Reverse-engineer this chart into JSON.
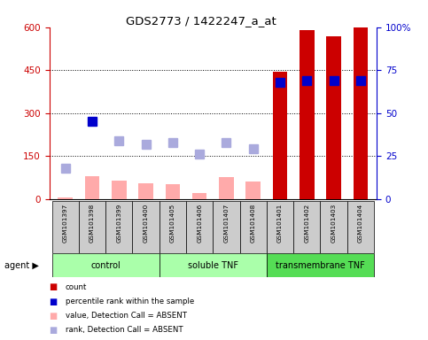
{
  "title": "GDS2773 / 1422247_a_at",
  "samples": [
    "GSM101397",
    "GSM101398",
    "GSM101399",
    "GSM101400",
    "GSM101405",
    "GSM101406",
    "GSM101407",
    "GSM101408",
    "GSM101401",
    "GSM101402",
    "GSM101403",
    "GSM101404"
  ],
  "count_present": [
    null,
    null,
    null,
    null,
    null,
    null,
    null,
    null,
    443,
    590,
    568,
    600
  ],
  "count_absent": [
    5,
    80,
    65,
    55,
    50,
    20,
    75,
    60,
    null,
    null,
    null,
    null
  ],
  "rank_present_pct": [
    null,
    45,
    null,
    null,
    null,
    null,
    null,
    null,
    68,
    69,
    69,
    69
  ],
  "rank_absent_pct": [
    18,
    null,
    34,
    32,
    33,
    26,
    33,
    29,
    null,
    null,
    null,
    null
  ],
  "ylim_left": [
    0,
    600
  ],
  "ylim_right": [
    0,
    100
  ],
  "yticks_left": [
    0,
    150,
    300,
    450,
    600
  ],
  "yticks_right": [
    0,
    25,
    50,
    75,
    100
  ],
  "group_info": [
    [
      0,
      3,
      "control",
      "#aaffaa"
    ],
    [
      4,
      7,
      "soluble TNF",
      "#aaffaa"
    ],
    [
      8,
      11,
      "transmembrane TNF",
      "#55dd55"
    ]
  ],
  "colors": {
    "count_present": "#cc0000",
    "count_absent": "#ffaaaa",
    "rank_present": "#0000cc",
    "rank_absent": "#aaaadd",
    "axis_left": "#cc0000",
    "axis_right": "#0000cc"
  },
  "bar_width": 0.55,
  "marker_size": 7
}
